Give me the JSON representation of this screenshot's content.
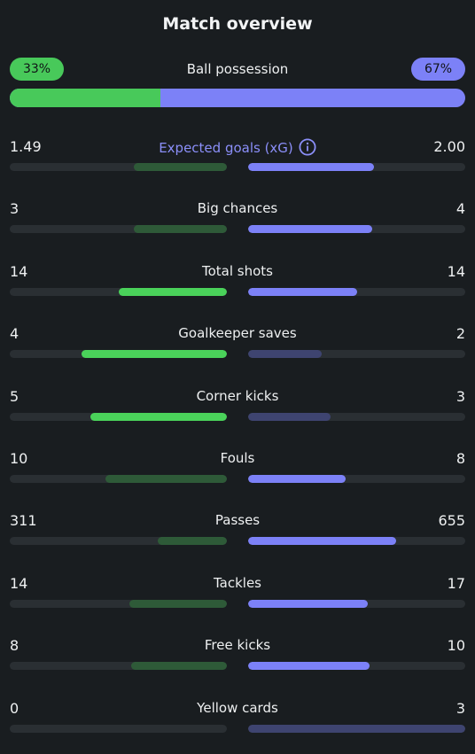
{
  "title": "Match overview",
  "possession": {
    "label": "Ball possession",
    "home": "33%",
    "away": "67%",
    "home_fraction": 0.33
  },
  "colors": {
    "home_strong": "#4ad25a",
    "home_weak": "#2e5a38",
    "away_strong": "#7c81f7",
    "away_weak": "#3e4470",
    "accent_text": "#8b8ff9",
    "background": "#191d20"
  },
  "stats": [
    {
      "name": "Expected goals (xG)",
      "home": "1.49",
      "away": "2.00",
      "home_fraction": 0.43,
      "away_fraction": 0.58,
      "winner": "away",
      "accent": true,
      "info_icon": "info-circle-icon"
    },
    {
      "name": "Big chances",
      "home": "3",
      "away": "4",
      "home_fraction": 0.43,
      "away_fraction": 0.57,
      "winner": "away"
    },
    {
      "name": "Total shots",
      "home": "14",
      "away": "14",
      "home_fraction": 0.5,
      "away_fraction": 0.5,
      "winner": "both"
    },
    {
      "name": "Goalkeeper saves",
      "home": "4",
      "away": "2",
      "home_fraction": 0.67,
      "away_fraction": 0.34,
      "winner": "home"
    },
    {
      "name": "Corner kicks",
      "home": "5",
      "away": "3",
      "home_fraction": 0.63,
      "away_fraction": 0.38,
      "winner": "home"
    },
    {
      "name": "Fouls",
      "home": "10",
      "away": "8",
      "home_fraction": 0.56,
      "away_fraction": 0.45,
      "winner": "away"
    },
    {
      "name": "Passes",
      "home": "311",
      "away": "655",
      "home_fraction": 0.32,
      "away_fraction": 0.68,
      "winner": "away"
    },
    {
      "name": "Tackles",
      "home": "14",
      "away": "17",
      "home_fraction": 0.45,
      "away_fraction": 0.55,
      "winner": "away"
    },
    {
      "name": "Free kicks",
      "home": "8",
      "away": "10",
      "home_fraction": 0.44,
      "away_fraction": 0.56,
      "winner": "away"
    },
    {
      "name": "Yellow cards",
      "home": "0",
      "away": "3",
      "home_fraction": 0.0,
      "away_fraction": 1.0,
      "winner": "away_weak"
    }
  ]
}
